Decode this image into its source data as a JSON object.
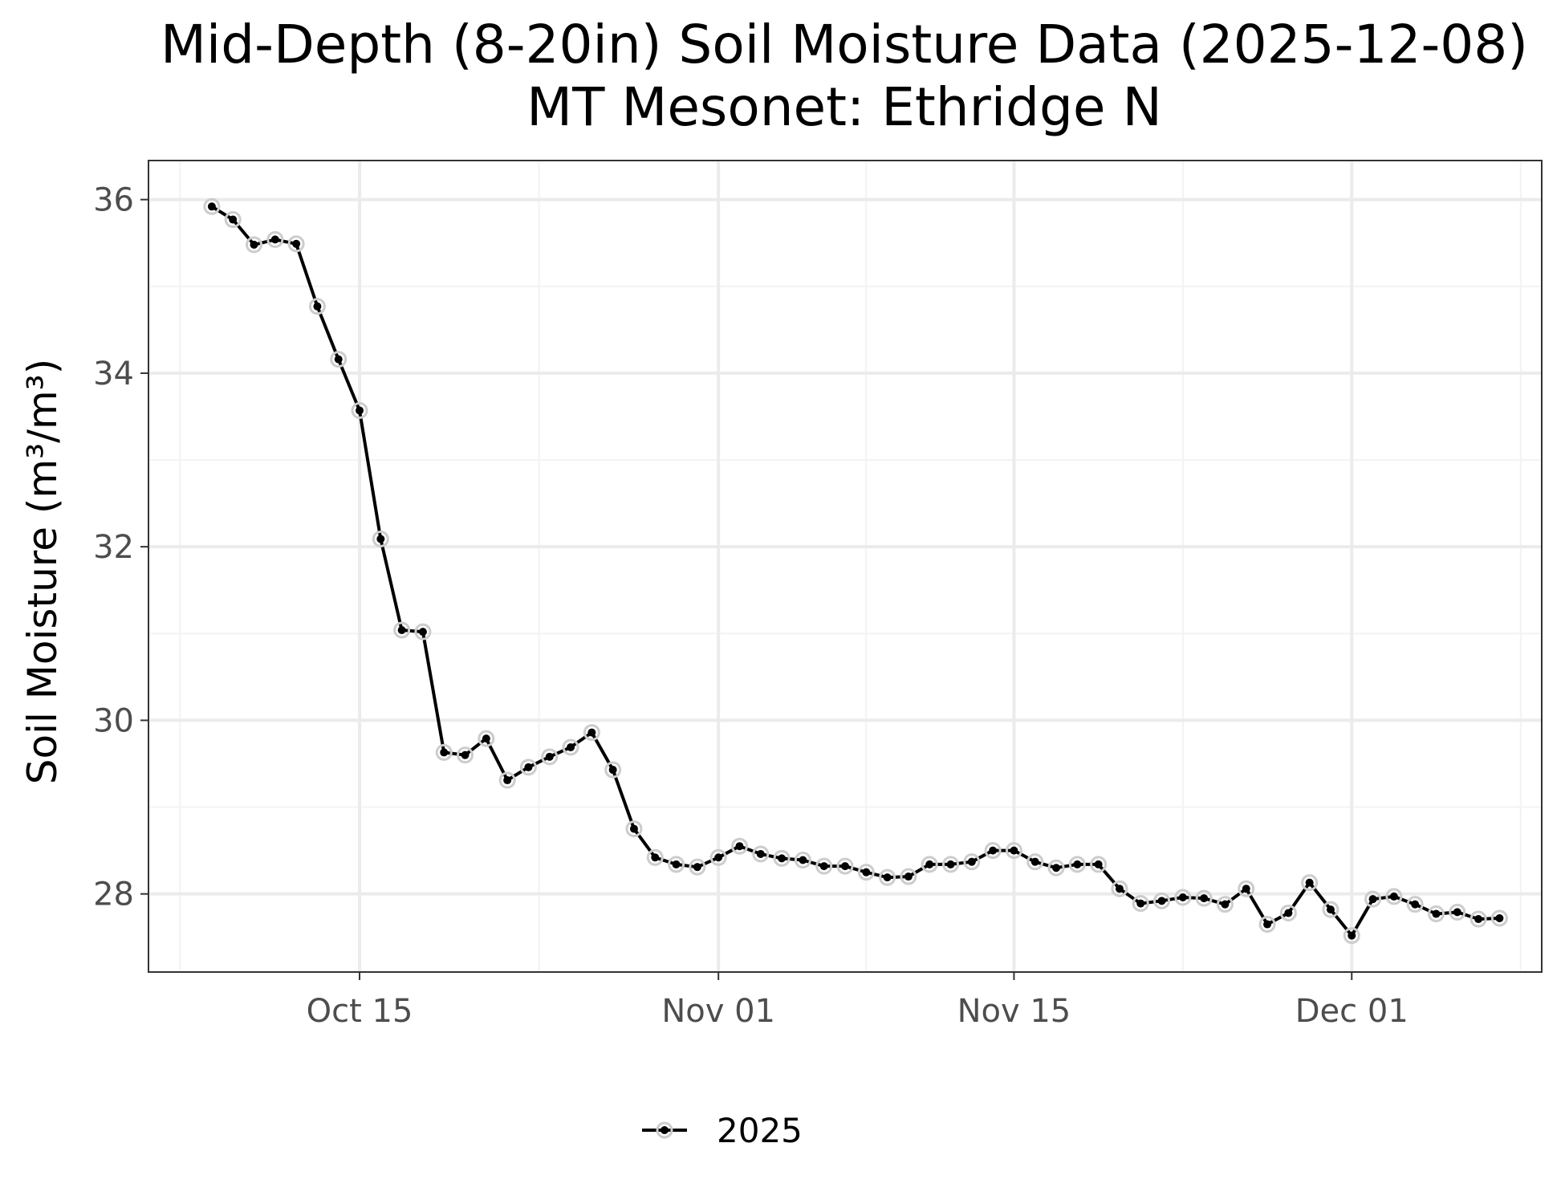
{
  "chart_data": {
    "type": "line",
    "title": "Mid-Depth (8-20in) Soil Moisture Data (2025-12-08)",
    "subtitle": "MT Mesonet: Ethridge N",
    "xlabel": "",
    "ylabel": "Soil Moisture (m³/m³)",
    "x_ticks": [
      {
        "date": "2025-10-15",
        "label": "Oct 15"
      },
      {
        "date": "2025-11-01",
        "label": "Nov 01"
      },
      {
        "date": "2025-11-15",
        "label": "Nov 15"
      },
      {
        "date": "2025-12-01",
        "label": "Dec 01"
      }
    ],
    "y_ticks": [
      28,
      30,
      32,
      34,
      36
    ],
    "xlim": [
      "2025-10-05",
      "2025-12-10"
    ],
    "ylim": [
      27.1,
      36.45
    ],
    "grid": true,
    "legend_position": "bottom",
    "colors": {
      "line": "#000000",
      "point_halo": "#cccccc",
      "grid_major": "#ebebeb",
      "grid_minor": "#f3f3f3",
      "panel_border": "#333333",
      "tick_label": "#4d4d4d"
    },
    "series": [
      {
        "name": "2025",
        "x": [
          "2025-10-08",
          "2025-10-09",
          "2025-10-10",
          "2025-10-11",
          "2025-10-12",
          "2025-10-13",
          "2025-10-14",
          "2025-10-15",
          "2025-10-16",
          "2025-10-17",
          "2025-10-18",
          "2025-10-19",
          "2025-10-20",
          "2025-10-21",
          "2025-10-22",
          "2025-10-23",
          "2025-10-24",
          "2025-10-25",
          "2025-10-26",
          "2025-10-27",
          "2025-10-28",
          "2025-10-29",
          "2025-10-30",
          "2025-10-31",
          "2025-11-01",
          "2025-11-02",
          "2025-11-03",
          "2025-11-04",
          "2025-11-05",
          "2025-11-06",
          "2025-11-07",
          "2025-11-08",
          "2025-11-09",
          "2025-11-10",
          "2025-11-11",
          "2025-11-12",
          "2025-11-13",
          "2025-11-14",
          "2025-11-15",
          "2025-11-16",
          "2025-11-17",
          "2025-11-18",
          "2025-11-19",
          "2025-11-20",
          "2025-11-21",
          "2025-11-22",
          "2025-11-23",
          "2025-11-24",
          "2025-11-25",
          "2025-11-26",
          "2025-11-27",
          "2025-11-28",
          "2025-11-29",
          "2025-11-30",
          "2025-12-01",
          "2025-12-02",
          "2025-12-03",
          "2025-12-04",
          "2025-12-05",
          "2025-12-06",
          "2025-12-07",
          "2025-12-08"
        ],
        "values": [
          35.92,
          35.77,
          35.48,
          35.54,
          35.49,
          34.77,
          34.16,
          33.57,
          32.09,
          31.04,
          31.02,
          29.63,
          29.6,
          29.79,
          29.31,
          29.46,
          29.58,
          29.69,
          29.86,
          29.43,
          28.75,
          28.42,
          28.34,
          28.31,
          28.42,
          28.55,
          28.46,
          28.41,
          28.39,
          28.32,
          28.32,
          28.25,
          28.19,
          28.2,
          28.34,
          28.34,
          28.37,
          28.5,
          28.5,
          28.37,
          28.3,
          28.34,
          28.34,
          28.06,
          27.89,
          27.92,
          27.96,
          27.95,
          27.88,
          28.06,
          27.65,
          27.78,
          28.13,
          27.82,
          27.52,
          27.94,
          27.97,
          27.88,
          27.77,
          27.79,
          27.71,
          27.72
        ]
      }
    ]
  }
}
